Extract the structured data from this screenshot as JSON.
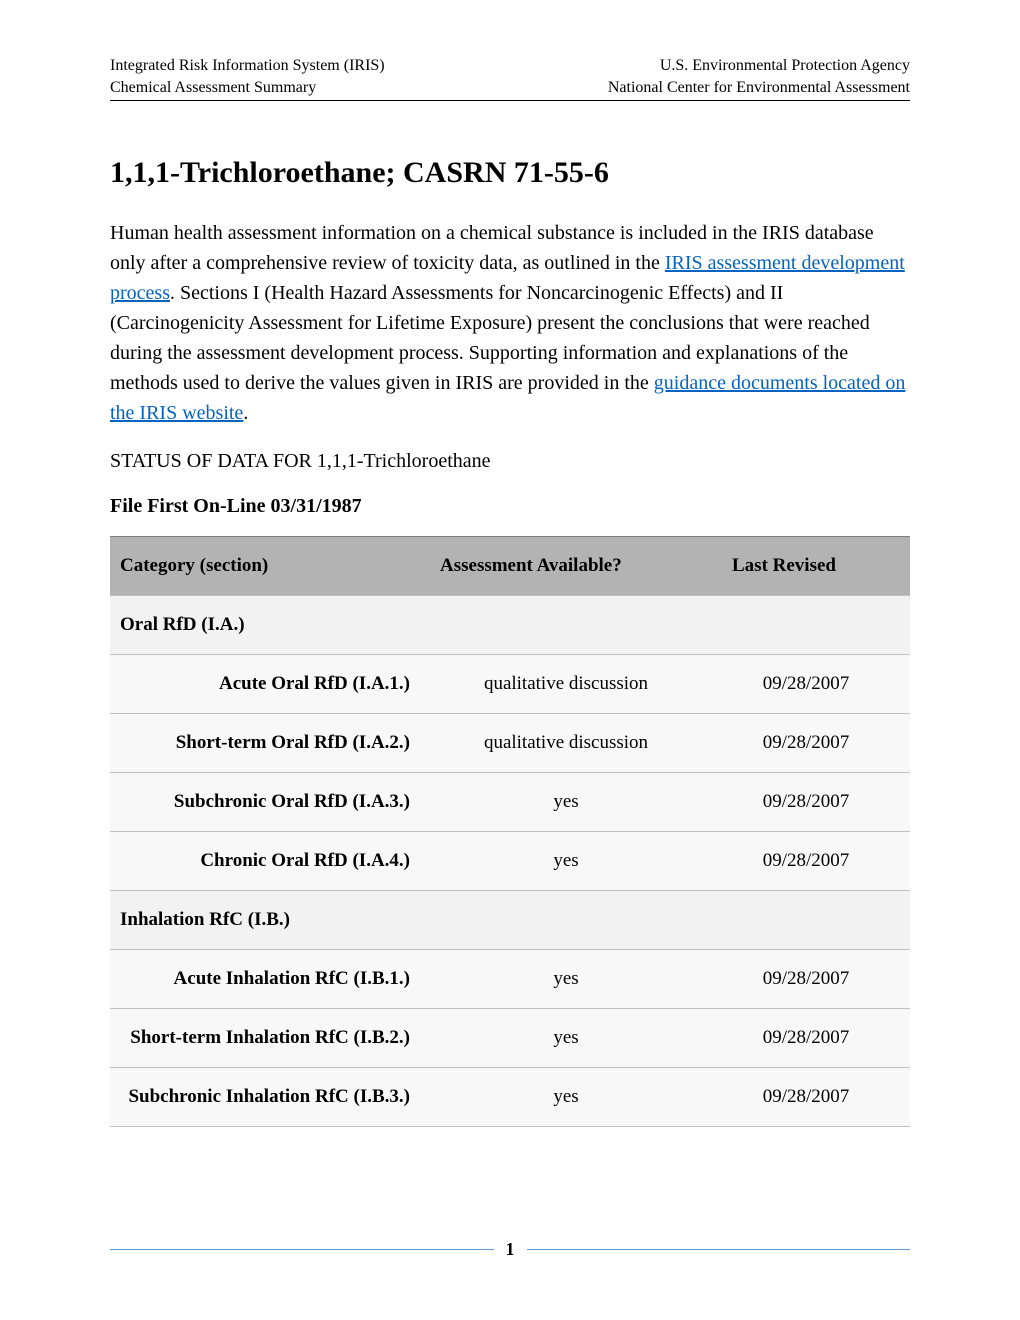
{
  "header": {
    "left_line1": "Integrated Risk Information System (IRIS)",
    "left_line2": "Chemical Assessment Summary",
    "right_line1": "U.S. Environmental Protection Agency",
    "right_line2": "National Center for Environmental Assessment"
  },
  "title": "1,1,1-Trichloroethane; CASRN 71-55-6",
  "intro": {
    "part1": "Human health assessment information on a chemical substance is included in the IRIS database only after a comprehensive review of toxicity data, as outlined in the ",
    "link1": "IRIS assessment development process",
    "part2": ". Sections I (Health Hazard Assessments for Noncarcinogenic Effects) and II (Carcinogenicity Assessment for Lifetime Exposure) present the conclusions that were reached during the assessment development process. Supporting information and explanations of the methods used to derive the values given in IRIS are provided in the ",
    "link2": "guidance documents located on the IRIS website",
    "part3": "."
  },
  "status_line": "STATUS OF DATA FOR 1,1,1-Trichloroethane",
  "file_line": "File First On-Line 03/31/1987",
  "table": {
    "headers": {
      "category": "Category (section)",
      "available": "Assessment Available?",
      "revised": "Last Revised"
    },
    "rows": [
      {
        "type": "section",
        "label": "Oral RfD (I.A.)"
      },
      {
        "type": "sub",
        "label": "Acute Oral RfD (I.A.1.)",
        "available": "qualitative discussion",
        "revised": "09/28/2007"
      },
      {
        "type": "sub",
        "label": "Short-term Oral RfD (I.A.2.)",
        "available": "qualitative discussion",
        "revised": "09/28/2007"
      },
      {
        "type": "sub",
        "label": "Subchronic Oral RfD (I.A.3.)",
        "available": "yes",
        "revised": "09/28/2007"
      },
      {
        "type": "sub",
        "label": "Chronic Oral RfD (I.A.4.)",
        "available": "yes",
        "revised": "09/28/2007"
      },
      {
        "type": "section",
        "label": "Inhalation RfC (I.B.)"
      },
      {
        "type": "sub",
        "label": "Acute Inhalation RfC (I.B.1.)",
        "available": "yes",
        "revised": "09/28/2007"
      },
      {
        "type": "sub",
        "label": "Short-term Inhalation RfC (I.B.2.)",
        "available": "yes",
        "revised": "09/28/2007"
      },
      {
        "type": "sub",
        "label": "Subchronic Inhalation RfC (I.B.3.)",
        "available": "yes",
        "revised": "09/28/2007"
      }
    ]
  },
  "page_number": "1",
  "colors": {
    "link": "#0563c1",
    "header_bg": "#b3b3b3",
    "row_bg_light": "#f8f8f8",
    "row_bg_section": "#f2f2f2",
    "border": "#c0c0c0",
    "footer_line": "#5b9bd5"
  }
}
